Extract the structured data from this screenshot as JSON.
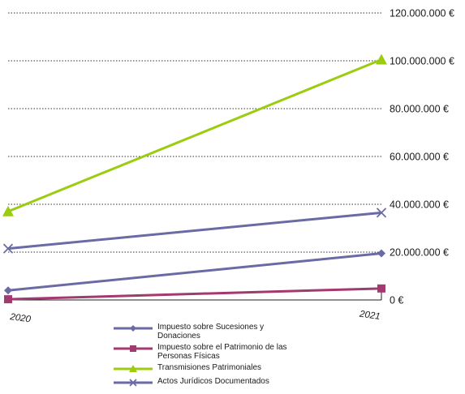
{
  "chart_data": {
    "type": "line",
    "x": [
      "2020",
      "2021"
    ],
    "ylim": [
      0,
      120000000
    ],
    "yticks": [
      {
        "value": 0,
        "label": "0 €"
      },
      {
        "value": 20000000,
        "label": "20.000.000 €"
      },
      {
        "value": 40000000,
        "label": "40.000.000 €"
      },
      {
        "value": 60000000,
        "label": "60.000.000 €"
      },
      {
        "value": 80000000,
        "label": "80.000.000 €"
      },
      {
        "value": 100000000,
        "label": "100.000.000 €"
      },
      {
        "value": 120000000,
        "label": "120.000.000 €"
      }
    ],
    "grid": "dotted horizontal",
    "legend_position": "bottom",
    "series": [
      {
        "name": "Impuesto sobre Sucesiones y Donaciones",
        "values": [
          4000000,
          19500000
        ],
        "color": "#6a6aa5",
        "marker": "diamond"
      },
      {
        "name": "Impuesto sobre el Patrimonio de las Personas Físicas",
        "values": [
          300000,
          4800000
        ],
        "color": "#a23a6f",
        "marker": "square"
      },
      {
        "name": "Transmisiones Patrimoniales",
        "values": [
          37000000,
          100500000
        ],
        "color": "#9ccc10",
        "marker": "triangle"
      },
      {
        "name": "Actos Jurídicos Documentados",
        "values": [
          21500000,
          36500000
        ],
        "color": "#6a6aa5",
        "marker": "x"
      }
    ]
  }
}
